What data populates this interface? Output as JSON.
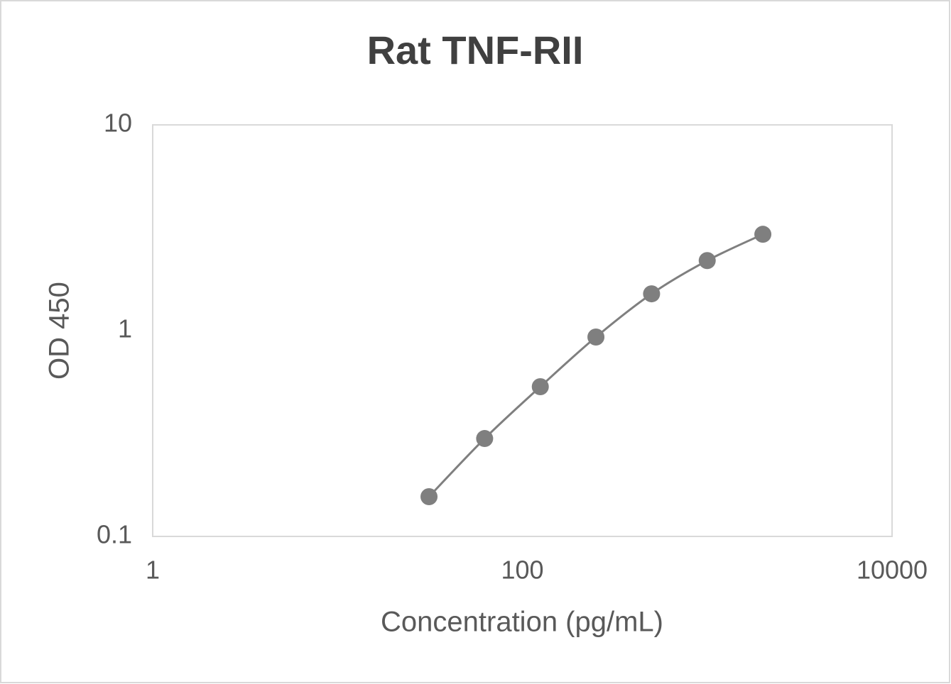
{
  "chart_data": {
    "type": "scatter",
    "title": "Rat TNF-RII",
    "x_label": "Concentration (pg/mL)",
    "y_label": "OD 450",
    "x": [
      31.25,
      62.5,
      125,
      250,
      500,
      1000,
      2000
    ],
    "series": [
      {
        "color": "#7f7f7f",
        "values": [
          0.156,
          0.299,
          0.534,
          0.931,
          1.51,
          2.19,
          2.94
        ]
      }
    ],
    "xlim": [
      1,
      10000
    ],
    "ylim": [
      0.1,
      10
    ],
    "xticks": [
      1,
      100,
      10000
    ],
    "yticks": [
      0.1,
      1,
      10
    ],
    "xscale": "log",
    "yscale": "log",
    "smooth": true
  }
}
